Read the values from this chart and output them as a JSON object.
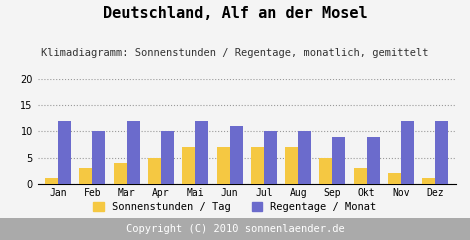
{
  "title": "Deutschland, Alf an der Mosel",
  "subtitle": "Klimadiagramm: Sonnenstunden / Regentage, monatlich, gemittelt",
  "months": [
    "Jan",
    "Feb",
    "Mar",
    "Apr",
    "Mai",
    "Jun",
    "Jul",
    "Aug",
    "Sep",
    "Okt",
    "Nov",
    "Dez"
  ],
  "sonnenstunden": [
    1,
    3,
    4,
    5,
    7,
    7,
    7,
    7,
    5,
    3,
    2,
    1
  ],
  "regentage": [
    12,
    10,
    12,
    10,
    12,
    11,
    10,
    10,
    9,
    9,
    12,
    12
  ],
  "color_sonne": "#F5C842",
  "color_regen": "#6B6BCC",
  "ylim": [
    0,
    20
  ],
  "yticks": [
    0,
    5,
    10,
    15,
    20
  ],
  "legend_sonne": "Sonnenstunden / Tag",
  "legend_regen": "Regentage / Monat",
  "copyright": "Copyright (C) 2010 sonnenlaender.de",
  "bg_color": "#F4F4F4",
  "footer_bg": "#AAAAAA",
  "title_fontsize": 11,
  "subtitle_fontsize": 7.5,
  "axis_fontsize": 7,
  "legend_fontsize": 7.5,
  "copyright_fontsize": 7.5
}
